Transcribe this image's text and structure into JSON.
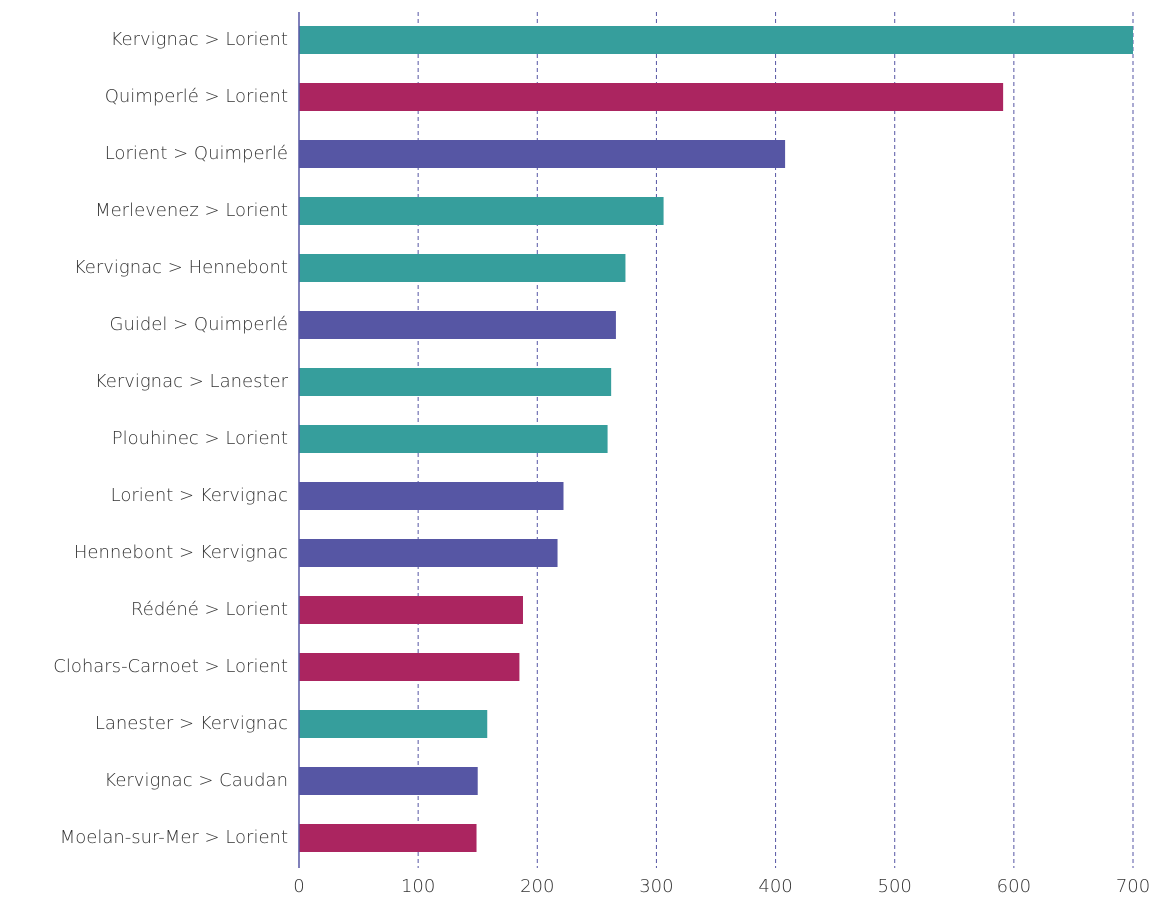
{
  "chart_data": {
    "type": "bar",
    "orientation": "horizontal",
    "categories": [
      "Kervignac > Lorient",
      "Quimperlé > Lorient",
      "Lorient > Quimperlé",
      "Merlevenez > Lorient",
      "Kervignac > Hennebont",
      "Guidel > Quimperlé",
      "Kervignac > Lanester",
      "Plouhinec > Lorient",
      "Lorient > Kervignac",
      "Hennebont > Kervignac",
      "Rédéné > Lorient",
      "Clohars-Carnoet > Lorient",
      "Lanester > Kervignac",
      "Kervignac > Caudan",
      "Moelan-sur-Mer > Lorient"
    ],
    "values": [
      700,
      591,
      408,
      306,
      274,
      266,
      262,
      259,
      222,
      217,
      188,
      185,
      158,
      150,
      149
    ],
    "colors": [
      "#369e9c",
      "#ab2560",
      "#5656a4",
      "#369e9c",
      "#369e9c",
      "#5656a4",
      "#369e9c",
      "#369e9c",
      "#5656a4",
      "#5656a4",
      "#ab2560",
      "#ab2560",
      "#369e9c",
      "#5656a4",
      "#ab2560"
    ],
    "xlim": [
      0,
      700
    ],
    "xticks": [
      0,
      100,
      200,
      300,
      400,
      500,
      600,
      700
    ],
    "grid": true
  }
}
